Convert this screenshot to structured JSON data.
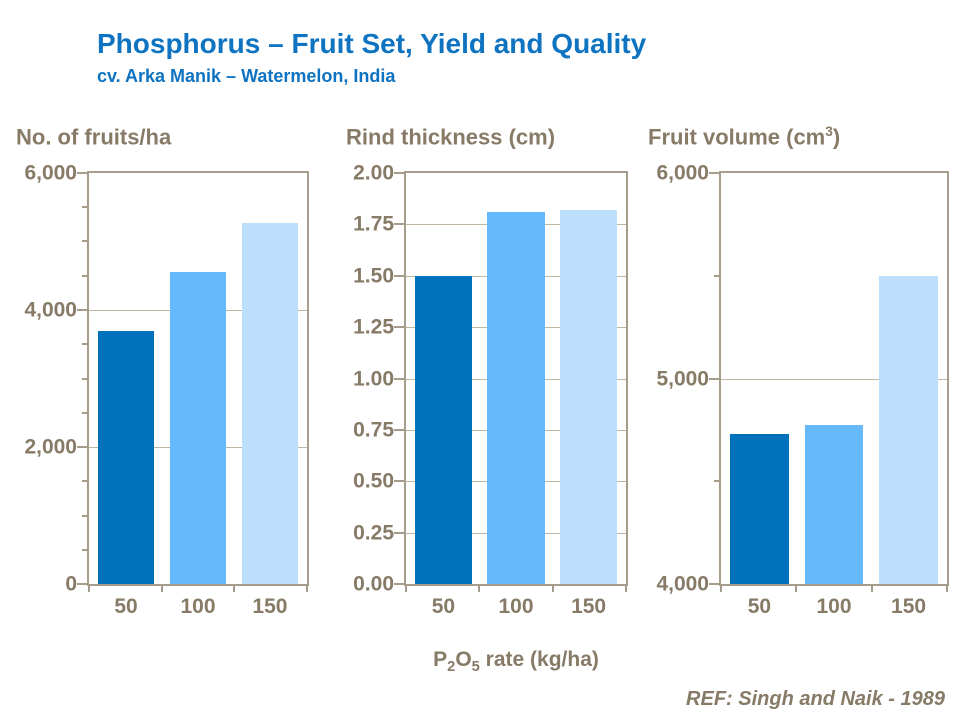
{
  "header": {
    "title": "Phosphorus – Fruit Set, Yield and Quality",
    "subtitle": "cv. Arka Manik – Watermelon, India"
  },
  "footer": {
    "reference": "REF: Singh and Naik - 1989"
  },
  "colors": {
    "title_blue": "#0E73C0",
    "bar_50": "#0072BC",
    "bar_100": "#66B9FB",
    "bar_150": "#BDDFFB",
    "axis_text": "#877A67",
    "axis_line": "#A69C8C",
    "gridline": "#C0B6A6"
  },
  "x_label": {
    "p": "P",
    "sub1": "2",
    "o": "O",
    "sub2": "5",
    "rest": " rate (kg/ha)"
  },
  "chart_data": [
    {
      "type": "bar",
      "title": "No. of fruits/ha",
      "title_sup": "",
      "title_end": "",
      "categories": [
        "50",
        "100",
        "150"
      ],
      "values": [
        3700,
        4550,
        5270
      ],
      "ylim": [
        0,
        6000
      ],
      "yticks": [
        {
          "value": 0,
          "label": "0"
        },
        {
          "value": 2000,
          "label": "2,000"
        },
        {
          "value": 4000,
          "label": "4,000"
        },
        {
          "value": 6000,
          "label": "6,000"
        }
      ],
      "minor_tick_step": 500,
      "gridlines": [
        2000,
        4000
      ],
      "legend": "none",
      "grid": "major-horizontal"
    },
    {
      "type": "bar",
      "title": "Rind thickness (cm)",
      "title_sup": "",
      "title_end": "",
      "categories": [
        "50",
        "100",
        "150"
      ],
      "values": [
        1.5,
        1.81,
        1.82
      ],
      "ylim": [
        0,
        2
      ],
      "yticks": [
        {
          "value": 0,
          "label": "0.00"
        },
        {
          "value": 0.25,
          "label": "0.25"
        },
        {
          "value": 0.5,
          "label": "0.50"
        },
        {
          "value": 0.75,
          "label": "0.75"
        },
        {
          "value": 1,
          "label": "1.00"
        },
        {
          "value": 1.25,
          "label": "1.25"
        },
        {
          "value": 1.5,
          "label": "1.50"
        },
        {
          "value": 1.75,
          "label": "1.75"
        },
        {
          "value": 2,
          "label": "2.00"
        }
      ],
      "minor_tick_step": null,
      "gridlines": [
        0.25,
        0.5,
        0.75,
        1,
        1.25,
        1.5,
        1.75
      ],
      "legend": "none",
      "grid": "horizontal"
    },
    {
      "type": "bar",
      "title": "Fruit volume (cm",
      "title_sup": "3",
      "title_end": ")",
      "categories": [
        "50",
        "100",
        "150"
      ],
      "values": [
        4730,
        4775,
        5500
      ],
      "ylim": [
        4000,
        6000
      ],
      "yticks": [
        {
          "value": 4000,
          "label": "4,000"
        },
        {
          "value": 5000,
          "label": "5,000"
        },
        {
          "value": 6000,
          "label": "6,000"
        }
      ],
      "minor_tick_step": 500,
      "gridlines": [
        5000
      ],
      "legend": "none",
      "grid": "major-horizontal"
    }
  ]
}
